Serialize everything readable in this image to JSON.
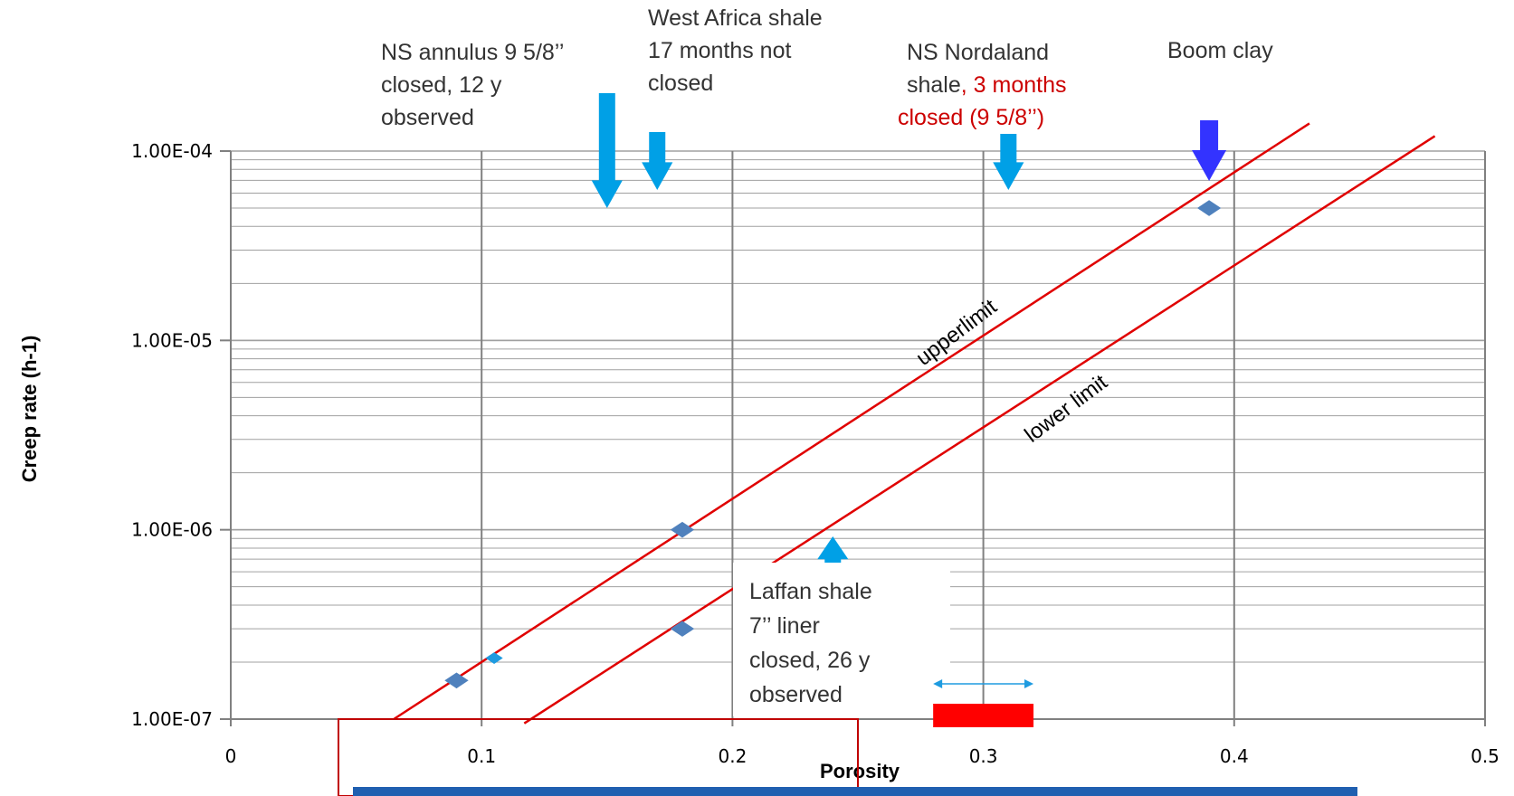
{
  "chart_data": {
    "type": "scatter",
    "title": "",
    "xlabel": "Porosity",
    "ylabel": "Creep rate (h-1)",
    "x_ticks": [
      "0",
      "0.1",
      "0.2",
      "0.3",
      "0.4",
      "0.5"
    ],
    "y_ticks": [
      "1.00E-07",
      "1.00E-06",
      "1.00E-05",
      "1.00E-04"
    ],
    "xlim": [
      0,
      0.5
    ],
    "ylim": [
      1e-07,
      0.0001
    ],
    "y_scale": "log",
    "grid": true,
    "points": [
      {
        "x": 0.09,
        "y": 1.6e-07
      },
      {
        "x": 0.105,
        "y": 2.1e-07
      },
      {
        "x": 0.18,
        "y": 1e-06
      },
      {
        "x": 0.18,
        "y": 3e-07
      },
      {
        "x": 0.39,
        "y": 5e-05
      }
    ],
    "lines": [
      {
        "name": "upperlimit",
        "x": [
          0.065,
          0.43
        ],
        "y": [
          1e-07,
          0.00014
        ]
      },
      {
        "name": "lower limit",
        "x": [
          0.117,
          0.48
        ],
        "y": [
          9.5e-08,
          0.00012
        ]
      }
    ],
    "annotations": [
      {
        "lines": [
          "NS annulus 9 5/8’’",
          "closed, 12 y",
          "observed"
        ],
        "arrow_x": 0.15,
        "color": "#333333"
      },
      {
        "lines": [
          "West Africa shale",
          "17 months not",
          "closed"
        ],
        "arrow_x": 0.17,
        "color": "#333333"
      },
      {
        "lines": [
          "NS Nordaland",
          "shale, 3 months",
          "closed (9 5/8’’)"
        ],
        "arrow_x": 0.31,
        "color": "#333333"
      },
      {
        "lines": [
          "Boom clay"
        ],
        "arrow_x": 0.39,
        "color": "#333333"
      },
      {
        "lines": [
          "Laffan shale",
          "7’’ liner",
          "closed, 26 y",
          "observed"
        ],
        "arrow_x": 0.24,
        "color": "#333333"
      }
    ],
    "range_marker": {
      "x": [
        0.28,
        0.32
      ]
    },
    "colors": {
      "line": "#e00000",
      "marker": "#4f81bd",
      "arrow": "#00a0e6",
      "arrow_dark": "#3333ff",
      "bar": "#ff0000"
    }
  },
  "labels": {
    "ann_ns_annulus_1": "NS annulus 9 5/8’’",
    "ann_ns_annulus_2": "closed, 12 y",
    "ann_ns_annulus_3": "observed",
    "ann_wa_1": "West Africa shale",
    "ann_wa_2": "17 months not",
    "ann_wa_3": "closed",
    "ann_nord_1": "NS Nordaland",
    "ann_nord_2a": "shale",
    "ann_nord_2b": ", 3 months",
    "ann_nord_3": "closed (9 5/8’’)",
    "ann_boom": "Boom clay",
    "ann_laffan_1": "Laffan shale",
    "ann_laffan_2": "7’’ liner",
    "ann_laffan_3": "closed, 26 y",
    "ann_laffan_4": "observed",
    "upper_limit": "upperlimit",
    "lower_limit": "lower limit"
  }
}
